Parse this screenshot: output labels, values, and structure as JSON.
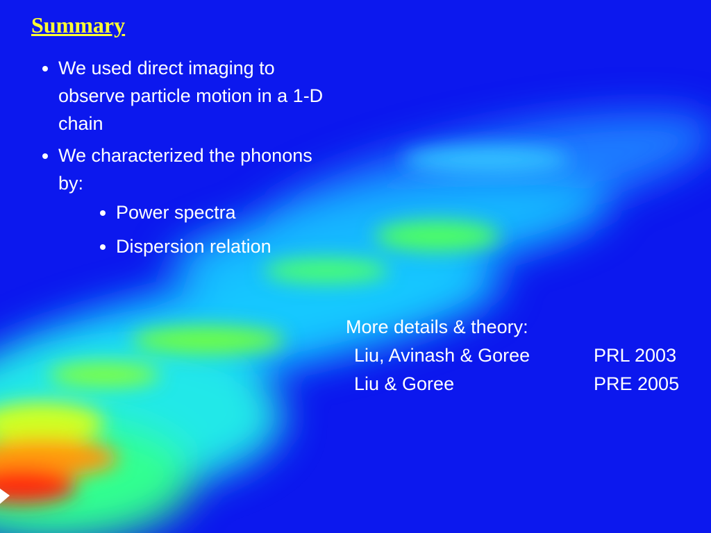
{
  "slide": {
    "title": "Summary",
    "bullets": [
      {
        "text": "We used direct imaging to observe particle motion in a 1-D chain",
        "sub": []
      },
      {
        "text": "We characterized the phonons by:",
        "sub": [
          "Power spectra",
          "Dispersion relation"
        ]
      }
    ],
    "references": {
      "heading": "More details & theory:",
      "rows": [
        [
          "Liu, Avinash & Goree",
          "PRL 2003"
        ],
        [
          "Liu & Goree",
          "PRE 2005"
        ]
      ]
    }
  }
}
